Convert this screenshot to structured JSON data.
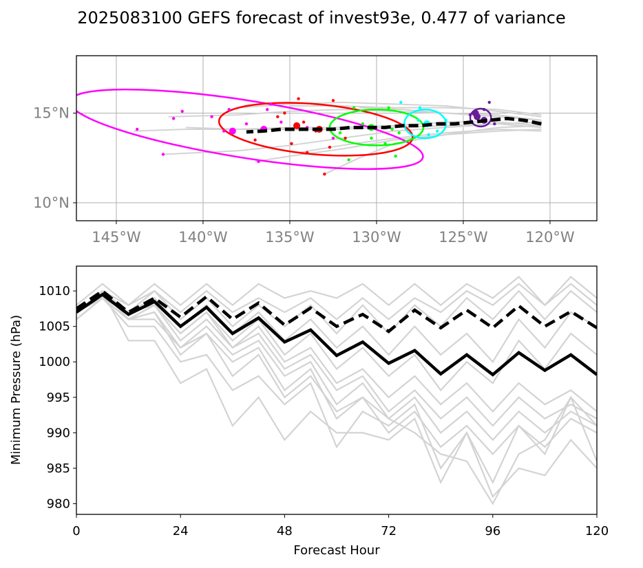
{
  "figure_title": "2025083100 GEFS forecast of invest93e, 0.477 of variance",
  "chart_data": [
    {
      "type": "map-tracks",
      "panel": "top",
      "title": "",
      "xlabel": "",
      "ylabel": "",
      "xlim": [
        -147.3,
        -117.3
      ],
      "ylim": [
        9.0,
        18.2
      ],
      "x_ticks": [
        -145,
        -140,
        -135,
        -130,
        -125,
        -120
      ],
      "x_tick_labels": [
        "145°W",
        "140°W",
        "135°W",
        "130°W",
        "125°W",
        "120°W"
      ],
      "y_ticks": [
        10,
        15
      ],
      "y_tick_labels": [
        "10°N",
        "15°N"
      ],
      "grid": true,
      "colors": {
        "member": "#d3d3d3",
        "mean": "#000000",
        "axes": "#000000",
        "tick_label": "#808080",
        "grid": "#b0b0b0"
      },
      "mean_track": {
        "lon": [
          -120.5,
          -121.5,
          -122.5,
          -123.5,
          -124.5,
          -125.5,
          -126.5,
          -127.5,
          -128.5,
          -129.5,
          -130.5,
          -131.5,
          -132.5,
          -133.5,
          -134.5,
          -135.5,
          -136.5,
          -137.5
        ],
        "lat": [
          14.4,
          14.6,
          14.7,
          14.6,
          14.5,
          14.4,
          14.4,
          14.3,
          14.3,
          14.2,
          14.2,
          14.2,
          14.1,
          14.1,
          14.1,
          14.1,
          14.0,
          13.95
        ]
      },
      "member_tracks": [
        {
          "lon": [
            -120.5,
            -123,
            -126,
            -129,
            -132,
            -135,
            -138
          ],
          "lat": [
            14.8,
            15.1,
            15.4,
            15.5,
            15.6,
            15.5,
            15.3
          ]
        },
        {
          "lon": [
            -120.5,
            -123,
            -126,
            -129,
            -132,
            -135,
            -138,
            -141
          ],
          "lat": [
            14.2,
            14.4,
            14.3,
            14.2,
            14.1,
            14.1,
            14.1,
            14.2
          ]
        },
        {
          "lon": [
            -120.5,
            -123,
            -126,
            -129,
            -132,
            -135,
            -138,
            -142
          ],
          "lat": [
            14.6,
            14.9,
            15.0,
            15.1,
            15.2,
            15.1,
            14.9,
            14.8
          ]
        },
        {
          "lon": [
            -120.5,
            -123,
            -126,
            -129,
            -132,
            -134.5
          ],
          "lat": [
            14.0,
            14.1,
            13.9,
            13.6,
            13.2,
            12.8
          ]
        },
        {
          "lon": [
            -120.5,
            -123,
            -126,
            -129,
            -131,
            -133
          ],
          "lat": [
            14.3,
            14.2,
            13.8,
            13.3,
            12.5,
            11.6
          ]
        },
        {
          "lon": [
            -120.5,
            -123,
            -126,
            -129,
            -132,
            -135,
            -137
          ],
          "lat": [
            14.1,
            14.0,
            13.8,
            13.5,
            13.0,
            12.6,
            12.3
          ]
        },
        {
          "lon": [
            -120.5,
            -123,
            -126,
            -129,
            -132,
            -135,
            -138,
            -142.3
          ],
          "lat": [
            14.5,
            14.4,
            14.2,
            14.0,
            13.6,
            13.2,
            12.9,
            12.7
          ]
        },
        {
          "lon": [
            -120.5,
            -123,
            -126,
            -129,
            -132,
            -135,
            -138,
            -141,
            -144
          ],
          "lat": [
            14.3,
            14.5,
            14.5,
            14.3,
            14.2,
            14.2,
            14.1,
            14.1,
            14.0
          ]
        },
        {
          "lon": [
            -120.5,
            -123,
            -126,
            -129,
            -132,
            -135
          ],
          "lat": [
            14.9,
            15.2,
            15.3,
            15.3,
            15.4,
            15.4
          ]
        },
        {
          "lon": [
            -120.5,
            -123,
            -126,
            -128.5,
            -131
          ],
          "lat": [
            14.6,
            14.8,
            15.0,
            15.2,
            15.3
          ]
        }
      ],
      "ellipses": [
        {
          "color": "#ff00ff",
          "center": [
            -137.5,
            14.1
          ],
          "radius_lon": 10.3,
          "radius_lat": 1.6,
          "rotation_deg": 9
        },
        {
          "color": "#ff0000",
          "center": [
            -133.5,
            14.1
          ],
          "radius_lon": 5.6,
          "radius_lat": 1.4,
          "rotation_deg": 5
        },
        {
          "color": "#00ff00",
          "center": [
            -130.0,
            14.2
          ],
          "radius_lon": 2.7,
          "radius_lat": 1.0,
          "rotation_deg": 0
        },
        {
          "color": "#00ffff",
          "center": [
            -127.2,
            14.4
          ],
          "radius_lon": 1.2,
          "radius_lat": 0.8,
          "rotation_deg": 0
        },
        {
          "color": "#6a1b9a",
          "center": [
            -124.0,
            14.75
          ],
          "radius_lon": 0.6,
          "radius_lat": 0.5,
          "rotation_deg": 0
        }
      ],
      "scatter_points": [
        {
          "color": "#ff00ff",
          "size": "small",
          "lon": [
            -143.8,
            -142.3,
            -141.2,
            -139.5,
            -138.8,
            -138.5,
            -136.8,
            -136.3,
            -135.5,
            -134.0,
            -132.5,
            -141.7,
            -137.5,
            -136.1
          ],
          "lat": [
            14.1,
            12.7,
            15.1,
            14.8,
            14.0,
            15.2,
            12.3,
            15.2,
            14.5,
            14.2,
            13.6,
            14.7,
            14.4,
            15.5
          ]
        },
        {
          "color": "#ff00ff",
          "size": "big",
          "lon": [
            -138.3,
            -136.5
          ],
          "lat": [
            14.0,
            14.1
          ]
        },
        {
          "color": "#ff0000",
          "size": "small",
          "lon": [
            -134.5,
            -132.5,
            -133.0,
            -135.3,
            -137.0,
            -134.9,
            -132.7,
            -134.0,
            -135.7,
            -134.2,
            -131.8,
            -133.5
          ],
          "lat": [
            15.8,
            15.7,
            11.6,
            15.0,
            13.5,
            13.3,
            13.1,
            12.8,
            14.8,
            14.5,
            13.6,
            14.0
          ]
        },
        {
          "color": "#ff0000",
          "size": "big",
          "lon": [
            -134.6,
            -133.3
          ],
          "lat": [
            14.3,
            14.1
          ]
        },
        {
          "color": "#00ff00",
          "size": "small",
          "lon": [
            -131.3,
            -129.3,
            -128.7,
            -130.3,
            -131.6,
            -128.9,
            -130.8,
            -129.1,
            -132.1,
            -129.5
          ],
          "lat": [
            15.3,
            15.3,
            13.9,
            13.6,
            12.4,
            12.6,
            14.4,
            14.1,
            13.9,
            13.3
          ]
        },
        {
          "color": "#00ff00",
          "size": "big",
          "lon": [
            -130.3
          ],
          "lat": [
            14.2
          ]
        },
        {
          "color": "#00ffff",
          "size": "small",
          "lon": [
            -128.6,
            -127.5,
            -126.0,
            -126.5,
            -127.6,
            -127.0
          ],
          "lat": [
            15.6,
            15.3,
            14.6,
            14.0,
            14.6,
            13.8
          ]
        },
        {
          "color": "#00ffff",
          "size": "big",
          "lon": [
            -127.1
          ],
          "lat": [
            14.4
          ]
        },
        {
          "color": "#6a1b9a",
          "size": "small",
          "lon": [
            -123.5,
            -123.2,
            -124.6,
            -123.8
          ],
          "lat": [
            15.6,
            14.4,
            14.9,
            15.2
          ]
        },
        {
          "color": "#6a1b9a",
          "size": "big",
          "lon": [
            -124.2,
            -123.8,
            -124.3
          ],
          "lat": [
            14.8,
            14.6,
            15.0
          ]
        }
      ]
    },
    {
      "type": "line",
      "panel": "bottom",
      "title": "",
      "xlabel": "Forecast Hour",
      "ylabel": "Minimum Pressure (hPa)",
      "xlim": [
        0,
        120
      ],
      "ylim": [
        978.5,
        1013.5
      ],
      "x_ticks": [
        0,
        24,
        48,
        72,
        96,
        120
      ],
      "y_ticks": [
        980,
        985,
        990,
        995,
        1000,
        1005,
        1010
      ],
      "grid": false,
      "colors": {
        "member": "#d3d3d3",
        "mean": "#000000"
      },
      "x": [
        0,
        6,
        12,
        18,
        24,
        30,
        36,
        42,
        48,
        54,
        60,
        66,
        72,
        78,
        84,
        90,
        96,
        102,
        108,
        114,
        120
      ],
      "series": [
        {
          "name": "ensemble mean (solid)",
          "style": "solid",
          "values": [
            1007,
            1009.5,
            1006.7,
            1008.5,
            1005,
            1007.7,
            1004,
            1006.2,
            1002.8,
            1004.5,
            1000.9,
            1002.8,
            999.8,
            1001.6,
            998.3,
            1001,
            998.2,
            1001.3,
            998.8,
            1001,
            998.2
          ]
        },
        {
          "name": "ensemble mean (dashed)",
          "style": "dashed",
          "values": [
            1007.5,
            1010,
            1007,
            1009,
            1006.3,
            1009.2,
            1006,
            1008.3,
            1005.2,
            1007.6,
            1005,
            1006.7,
            1004.3,
            1007.3,
            1004.8,
            1007.3,
            1004.8,
            1007.9,
            1005,
            1007.1,
            1004.8
          ]
        }
      ],
      "member_series": [
        [
          1008,
          1011,
          1008,
          1011,
          1008,
          1011,
          1008,
          1011,
          1009,
          1010,
          1009,
          1011,
          1008,
          1011,
          1008,
          1011,
          1009,
          1012,
          1008,
          1012,
          1009
        ],
        [
          1007,
          1010,
          1008,
          1010,
          1007,
          1010,
          1007,
          1009,
          1007,
          1009,
          1006,
          1009,
          1006,
          1009,
          1007,
          1010,
          1008,
          1011,
          1008,
          1011,
          1008
        ],
        [
          1007,
          1010,
          1007,
          1010,
          1006,
          1009,
          1005,
          1008,
          1005,
          1008,
          1004,
          1008,
          1004,
          1008,
          1005,
          1009,
          1006,
          1010,
          1006,
          1010,
          1007
        ],
        [
          1007,
          1009,
          1007,
          1009,
          1005,
          1008,
          1004,
          1007,
          1003,
          1006,
          1002,
          1005,
          1001,
          1005,
          1001,
          1004,
          1000,
          1006,
          1002,
          1007,
          1005
        ],
        [
          1006,
          1009,
          1007,
          1008,
          1004,
          1007,
          1003,
          1006,
          1001,
          1004,
          999,
          1002,
          998,
          1001,
          996,
          1000,
          997,
          1003,
          999,
          1004,
          1001
        ],
        [
          1007,
          1009,
          1006,
          1008,
          1004,
          1007,
          1002,
          1005,
          1000,
          1002,
          997,
          999,
          995,
          998,
          994,
          997,
          993,
          997,
          994,
          996,
          993
        ],
        [
          1006,
          1009,
          1006,
          1008,
          1003,
          1006,
          1002,
          1004,
          999,
          1001,
          996,
          998,
          993,
          996,
          992,
          995,
          991,
          995,
          992,
          994,
          992
        ],
        [
          1006,
          1009,
          1006,
          1007,
          1002,
          1005,
          1001,
          1003,
          998,
          1000,
          994,
          997,
          992,
          995,
          990,
          993,
          989,
          993,
          990,
          993,
          991
        ],
        [
          1007,
          1009,
          1006,
          1007,
          1001,
          1004,
          1000,
          1002,
          996,
          999,
          992,
          995,
          990,
          993,
          988,
          991,
          987,
          991,
          988,
          992,
          990
        ],
        [
          1007,
          1010,
          1003,
          1003,
          997,
          999,
          991,
          995,
          989,
          993,
          990,
          990,
          989,
          992,
          983,
          990,
          981,
          985,
          984,
          989,
          985
        ],
        [
          1006,
          1009,
          1005,
          1005,
          1000,
          1001,
          996,
          998,
          994,
          997,
          988,
          993,
          991,
          994,
          985,
          990,
          983,
          991,
          987,
          995,
          986
        ],
        [
          1007,
          1010,
          1006,
          1006,
          1002,
          1004,
          998,
          1001,
          995,
          998,
          993,
          995,
          992,
          990,
          987,
          986,
          980,
          987,
          989,
          995,
          991
        ]
      ]
    }
  ]
}
